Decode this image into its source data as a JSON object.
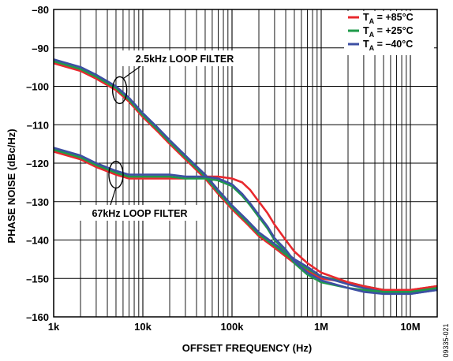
{
  "chart_data": {
    "type": "line",
    "xlabel": "OFFSET FREQUENCY (Hz)",
    "ylabel": "PHASE NOISE (dBc/Hz)",
    "xscale": "log",
    "xlim": [
      1000,
      20000000
    ],
    "ylim": [
      -160,
      -80
    ],
    "x_ticks": [
      {
        "value": 1000,
        "label": "1k"
      },
      {
        "value": 10000,
        "label": "10k"
      },
      {
        "value": 100000,
        "label": "100k"
      },
      {
        "value": 1000000,
        "label": "1M"
      },
      {
        "value": 10000000,
        "label": "10M"
      }
    ],
    "y_ticks": [
      {
        "value": -80,
        "label": "–80"
      },
      {
        "value": -90,
        "label": "–90"
      },
      {
        "value": -100,
        "label": "–100"
      },
      {
        "value": -110,
        "label": "–110"
      },
      {
        "value": -120,
        "label": "–120"
      },
      {
        "value": -130,
        "label": "–130"
      },
      {
        "value": -140,
        "label": "–140"
      },
      {
        "value": -150,
        "label": "–150"
      },
      {
        "value": -160,
        "label": "–160"
      }
    ],
    "grid": true,
    "legend_position": "top-right",
    "legend": [
      {
        "main": "T",
        "sub": "A",
        "rest": " = +85°C",
        "color": "#e8292e"
      },
      {
        "main": "T",
        "sub": "A",
        "rest": " = +25°C",
        "color": "#1f9a4a"
      },
      {
        "main": "T",
        "sub": "A",
        "rest": " = –40°C",
        "color": "#3d4fa3"
      }
    ],
    "annotations": [
      {
        "text": "2.5kHz LOOP FILTER",
        "x": 5500,
        "y": -101
      },
      {
        "text": "67kHz LOOP FILTER",
        "x": 5000,
        "y": -123
      }
    ],
    "series": [
      {
        "group": "2.5kHz LOOP FILTER",
        "temp": "+85°C",
        "color": "#e8292e",
        "x": [
          1000,
          2000,
          3000,
          5000,
          7000,
          10000,
          15000,
          20000,
          30000,
          50000,
          70000,
          100000,
          150000,
          200000,
          300000,
          500000,
          700000,
          1000000,
          2000000,
          3000000,
          5000000,
          10000000,
          20000000
        ],
        "y": [
          -94,
          -96,
          -98,
          -101,
          -104,
          -108,
          -112,
          -115,
          -119,
          -124,
          -128,
          -132,
          -136,
          -139,
          -142,
          -146,
          -148,
          -150,
          -151,
          -152,
          -153,
          -153,
          -152
        ]
      },
      {
        "group": "2.5kHz LOOP FILTER",
        "temp": "+25°C",
        "color": "#1f9a4a",
        "x": [
          1000,
          2000,
          3000,
          5000,
          7000,
          10000,
          15000,
          20000,
          30000,
          50000,
          70000,
          100000,
          150000,
          200000,
          300000,
          500000,
          700000,
          1000000,
          2000000,
          3000000,
          5000000,
          10000000,
          20000000
        ],
        "y": [
          -93.5,
          -95.5,
          -97.5,
          -100.5,
          -103.5,
          -107.5,
          -111.5,
          -114.5,
          -118.5,
          -123.5,
          -127.5,
          -131.5,
          -135.5,
          -138.5,
          -141.5,
          -145.5,
          -147.5,
          -149.5,
          -151,
          -152,
          -153,
          -153.5,
          -153
        ]
      },
      {
        "group": "2.5kHz LOOP FILTER",
        "temp": "–40°C",
        "color": "#3d4fa3",
        "x": [
          1000,
          2000,
          3000,
          5000,
          7000,
          10000,
          15000,
          20000,
          30000,
          50000,
          70000,
          100000,
          150000,
          200000,
          300000,
          500000,
          700000,
          1000000,
          2000000,
          3000000,
          5000000,
          10000000,
          20000000
        ],
        "y": [
          -93,
          -95,
          -97,
          -100,
          -103,
          -107,
          -111,
          -114,
          -118,
          -123,
          -127,
          -131,
          -135,
          -138,
          -141,
          -145,
          -147,
          -149.5,
          -151.5,
          -152.5,
          -153.5,
          -154,
          -153
        ]
      },
      {
        "group": "67kHz LOOP FILTER",
        "temp": "+85°C",
        "color": "#e8292e",
        "x": [
          1000,
          2000,
          3000,
          5000,
          7000,
          10000,
          20000,
          30000,
          50000,
          70000,
          100000,
          130000,
          160000,
          200000,
          250000,
          300000,
          400000,
          500000,
          700000,
          1000000,
          2000000,
          3000000,
          5000000,
          10000000,
          20000000
        ],
        "y": [
          -117,
          -119,
          -121,
          -123,
          -124,
          -124,
          -124,
          -124,
          -123.5,
          -123.5,
          -124,
          -125,
          -127,
          -130,
          -133,
          -136,
          -140,
          -143,
          -146,
          -148.5,
          -151,
          -152,
          -153,
          -153,
          -152
        ]
      },
      {
        "group": "67kHz LOOP FILTER",
        "temp": "+25°C",
        "color": "#1f9a4a",
        "x": [
          1000,
          2000,
          3000,
          5000,
          7000,
          10000,
          20000,
          30000,
          50000,
          70000,
          100000,
          130000,
          160000,
          200000,
          250000,
          300000,
          400000,
          500000,
          700000,
          1000000,
          2000000,
          3000000,
          5000000,
          10000000,
          20000000
        ],
        "y": [
          -116.5,
          -118.5,
          -120.5,
          -122.5,
          -123.5,
          -123.5,
          -123.5,
          -124,
          -124,
          -124.5,
          -126,
          -128.5,
          -131,
          -134,
          -137,
          -140,
          -143,
          -146,
          -149,
          -151,
          -152.5,
          -153,
          -153.5,
          -153.5,
          -152.5
        ]
      },
      {
        "group": "67kHz LOOP FILTER",
        "temp": "–40°C",
        "color": "#3d4fa3",
        "x": [
          1000,
          2000,
          3000,
          5000,
          7000,
          10000,
          20000,
          30000,
          50000,
          70000,
          100000,
          130000,
          160000,
          200000,
          250000,
          300000,
          400000,
          500000,
          700000,
          1000000,
          2000000,
          3000000,
          5000000,
          10000000,
          20000000
        ],
        "y": [
          -116,
          -118,
          -120,
          -122,
          -123,
          -123,
          -123,
          -123.5,
          -123.5,
          -124,
          -125.5,
          -128,
          -130.5,
          -133.5,
          -136.5,
          -139.5,
          -142.5,
          -145.5,
          -148.5,
          -150.5,
          -152.5,
          -153.5,
          -154,
          -154,
          -153
        ]
      }
    ]
  },
  "figure_id": "09335-021"
}
